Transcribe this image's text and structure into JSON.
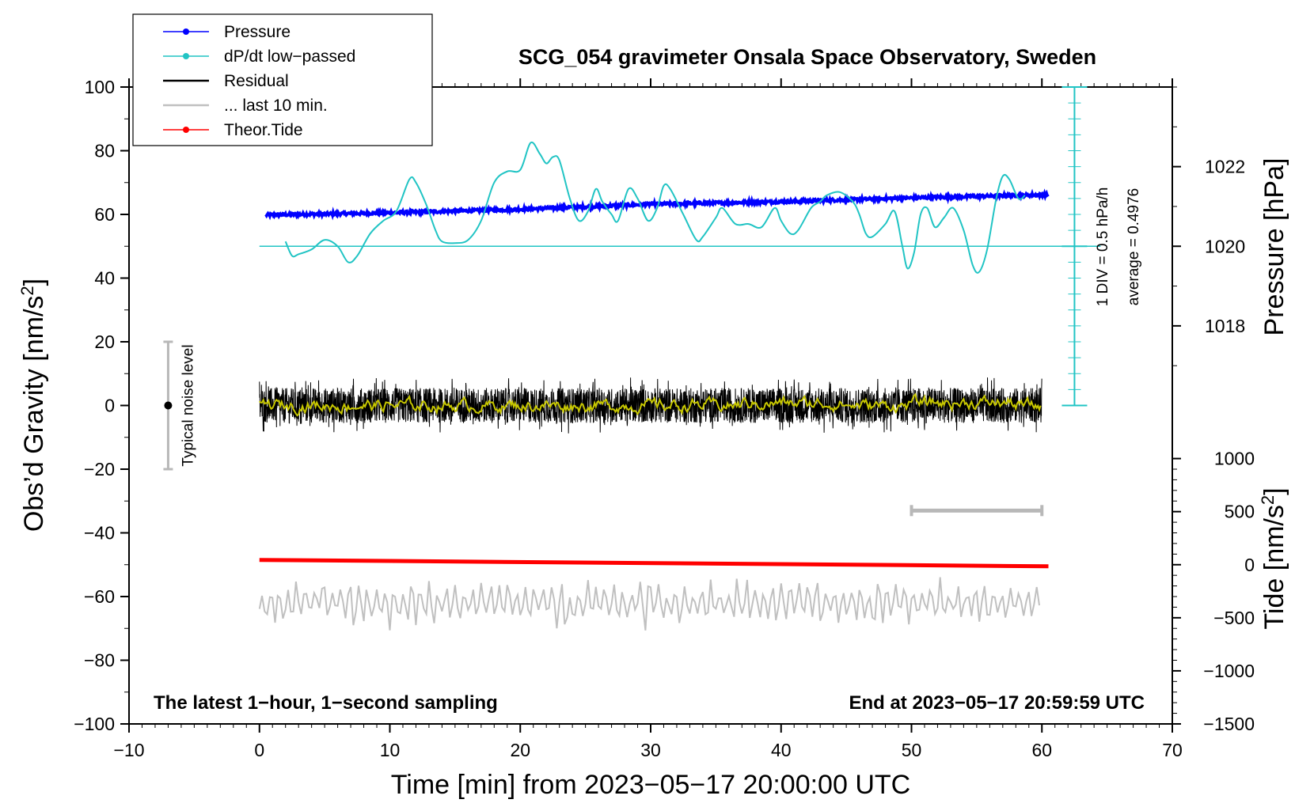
{
  "chart_data": {
    "type": "line",
    "title": "SCG_054 gravimeter Onsala Space Observatory, Sweden",
    "xlabel": "Time [min] from 2023−05−17 20:00:00 UTC",
    "ylabel_left": "Obs’d Gravity [nm/s²]",
    "ylabel_left_parts": {
      "main": "Obs’d Gravity [nm/s",
      "sup": "2",
      "end": "]"
    },
    "ylabel_right_pressure": "Pressure [hPa]",
    "ylabel_right_tide": "Tide [nm/s²]",
    "ylabel_right_tide_parts": {
      "main": "Tide [nm/s",
      "sup": "2",
      "end": "]"
    },
    "xlim": [
      -10,
      70
    ],
    "ylim": [
      -100,
      100
    ],
    "x_ticks": [
      -10,
      0,
      10,
      20,
      30,
      40,
      50,
      60,
      70
    ],
    "x_tick_labels": [
      "−10",
      "0",
      "10",
      "20",
      "30",
      "40",
      "50",
      "60",
      "70"
    ],
    "y_ticks": [
      100,
      80,
      60,
      40,
      20,
      0,
      -20,
      -40,
      -60,
      -80,
      -100
    ],
    "y_tick_labels": [
      "100",
      "80",
      "60",
      "40",
      "20",
      "0",
      "−20",
      "−40",
      "−60",
      "−80",
      "−100"
    ],
    "pressure_axis": {
      "ticks": [
        1022,
        1020,
        1018
      ],
      "tick_labels": [
        "1022",
        "1020",
        "1018"
      ],
      "map_gravity": {
        "1020": 50,
        "hPa_per_unit": 0.0
      }
    },
    "pressure_axis_gravity_positions": [
      75,
      50,
      25
    ],
    "tide_axis": {
      "ticks": [
        1000,
        500,
        0,
        -500,
        -1000,
        -1500
      ],
      "tick_labels": [
        "1000",
        "500",
        "0",
        "−500",
        "−1000",
        "−1500"
      ],
      "gravity_per_tide_unit": 0.03333,
      "tide_zero_at_gravity": -50
    },
    "dpdt_scale": {
      "text_div": "1 DIV = 0.5 hPa/h",
      "text_avg": "average = 0.4976",
      "x": 62.5,
      "y_from": 0,
      "y_to": 100
    },
    "noise_bar": {
      "x": -7,
      "y_center": 0,
      "y_low": -20,
      "y_high": 20,
      "label": "Typical noise level"
    },
    "gray_range_bar": {
      "x_from": 50,
      "x_to": 60,
      "y": -33
    },
    "series": [
      {
        "name": "Pressure",
        "color": "#0000ff",
        "x_range": [
          0.5,
          60.5
        ],
        "y_start": 59.8,
        "y_end": 66.2,
        "description_values": [
          [
            0.5,
            59.8
          ],
          [
            10,
            60.5
          ],
          [
            20,
            61.6
          ],
          [
            30,
            63.2
          ],
          [
            40,
            64.0
          ],
          [
            50,
            65.2
          ],
          [
            60.5,
            66.2
          ]
        ]
      },
      {
        "name": "dP/dt low−passed",
        "color": "#21c4c4",
        "points": [
          [
            2,
            51.5
          ],
          [
            2.5,
            47
          ],
          [
            3,
            47.5
          ],
          [
            4,
            49
          ],
          [
            5,
            52
          ],
          [
            6,
            50
          ],
          [
            6.8,
            45
          ],
          [
            7.5,
            47
          ],
          [
            8.5,
            54
          ],
          [
            9.5,
            58
          ],
          [
            10.5,
            61
          ],
          [
            11.5,
            71
          ],
          [
            12,
            70
          ],
          [
            12.8,
            63
          ],
          [
            13.5,
            55
          ],
          [
            14,
            51.5
          ],
          [
            15,
            51
          ],
          [
            16,
            52
          ],
          [
            17,
            58
          ],
          [
            18,
            70
          ],
          [
            19,
            73.5
          ],
          [
            20,
            74
          ],
          [
            20.8,
            82.5
          ],
          [
            21.5,
            79
          ],
          [
            22,
            76
          ],
          [
            22.5,
            78
          ],
          [
            23,
            77
          ],
          [
            23.8,
            65
          ],
          [
            24.5,
            58
          ],
          [
            25.2,
            61
          ],
          [
            25.8,
            68
          ],
          [
            26.3,
            64
          ],
          [
            27,
            60
          ],
          [
            27.5,
            58
          ],
          [
            28.3,
            68
          ],
          [
            29,
            65
          ],
          [
            29.8,
            58
          ],
          [
            30.5,
            62
          ],
          [
            31,
            69
          ],
          [
            31.5,
            68
          ],
          [
            32.5,
            60
          ],
          [
            33.5,
            52
          ],
          [
            34,
            53
          ],
          [
            35,
            59
          ],
          [
            35.5,
            62
          ],
          [
            36.5,
            57
          ],
          [
            37.5,
            57
          ],
          [
            38.5,
            56
          ],
          [
            39.5,
            62
          ],
          [
            40,
            58
          ],
          [
            40.7,
            54
          ],
          [
            41.3,
            55
          ],
          [
            42.3,
            62
          ],
          [
            43,
            64
          ],
          [
            43.5,
            66
          ],
          [
            44.5,
            67
          ],
          [
            45.5,
            64
          ],
          [
            46,
            60
          ],
          [
            46.5,
            54
          ],
          [
            47,
            53
          ],
          [
            48,
            57
          ],
          [
            48.7,
            61
          ],
          [
            49.3,
            50
          ],
          [
            49.7,
            43
          ],
          [
            50.2,
            48
          ],
          [
            50.7,
            60
          ],
          [
            51.2,
            62
          ],
          [
            51.8,
            56
          ],
          [
            52.5,
            59
          ],
          [
            53.2,
            62
          ],
          [
            54,
            55
          ],
          [
            54.7,
            44
          ],
          [
            55.2,
            42
          ],
          [
            55.8,
            49
          ],
          [
            56.5,
            65
          ],
          [
            57,
            72
          ],
          [
            57.5,
            71
          ],
          [
            58.2,
            65
          ],
          [
            58.7,
            66
          ]
        ]
      },
      {
        "name": "Residual",
        "color": "#000000",
        "x_range": [
          0,
          60
        ],
        "center": 0,
        "amplitude": 10
      },
      {
        "name": "... last 10 min.",
        "color": "#c0c0c0",
        "x_range": [
          0,
          60
        ],
        "center": -62,
        "amplitude": 8
      },
      {
        "name": "Theor.Tide",
        "color": "#ff0000",
        "x_range": [
          0,
          60.5
        ],
        "y_start": -48.5,
        "y_end": -50.5
      },
      {
        "name": "Residual smoothed",
        "color": "#c8c800",
        "x_range": [
          0,
          60
        ],
        "center": 0,
        "amplitude": 1.5
      }
    ],
    "reference_line": {
      "color": "#21c4c4",
      "y": 50,
      "x_from": 0,
      "x_to": 64.5
    },
    "legend": {
      "placement": "top-left",
      "entries": [
        {
          "label": "Pressure",
          "color": "#0000ff",
          "marker": true
        },
        {
          "label": "dP/dt low−passed",
          "color": "#21c4c4",
          "marker": true
        },
        {
          "label": "Residual",
          "color": "#000000",
          "marker": false
        },
        {
          "label": "... last 10 min.",
          "color": "#c0c0c0",
          "marker": false
        },
        {
          "label": "Theor.Tide",
          "color": "#ff0000",
          "marker": true
        }
      ]
    },
    "annotations": {
      "bottom_left": "The latest 1−hour, 1−second sampling",
      "bottom_right": "End at 2023−05−17 20:59:59 UTC"
    }
  }
}
